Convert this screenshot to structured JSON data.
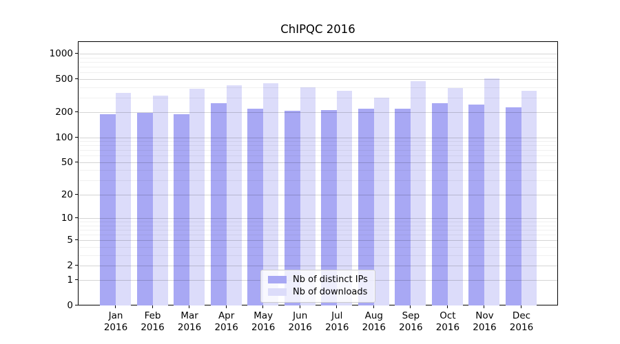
{
  "chart_data": {
    "type": "bar",
    "title": "ChIPQC 2016",
    "categories": [
      "Jan",
      "Feb",
      "Mar",
      "Apr",
      "May",
      "Jun",
      "Jul",
      "Aug",
      "Sep",
      "Oct",
      "Nov",
      "Dec"
    ],
    "year_label": "2016",
    "series": [
      {
        "name": "Nb of distinct IPs",
        "color": "#a8a8f4",
        "values": [
          192,
          199,
          192,
          257,
          222,
          211,
          213,
          220,
          222,
          260,
          246,
          232
        ]
      },
      {
        "name": "Nb of downloads",
        "color": "#dcdcfa",
        "values": [
          345,
          320,
          385,
          423,
          450,
          396,
          366,
          300,
          473,
          394,
          513,
          361
        ]
      }
    ],
    "yscale": "log1p",
    "ylim": [
      0,
      1417
    ],
    "yticks_major": [
      0,
      1,
      2,
      5,
      10,
      20,
      50,
      100,
      200,
      500,
      1000
    ],
    "ytick_labels": [
      "0",
      "1",
      "2",
      "5",
      "10",
      "20",
      "50",
      "100",
      "200",
      "500",
      "1000"
    ],
    "yticks_minor": [
      3,
      4,
      6,
      7,
      8,
      9,
      30,
      40,
      60,
      70,
      80,
      90,
      300,
      400,
      600,
      700,
      800,
      900
    ],
    "grid": "both",
    "legend_position": "lower center"
  }
}
